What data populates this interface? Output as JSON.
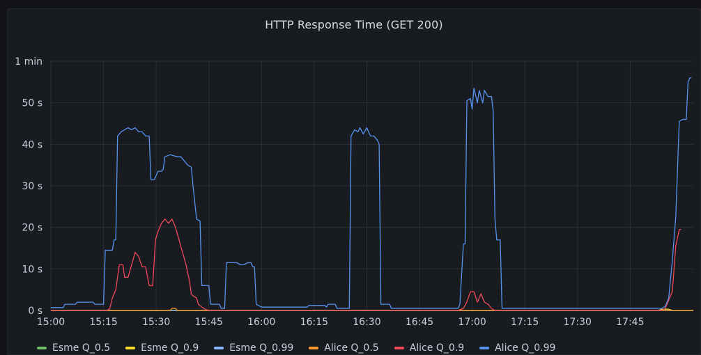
{
  "panel": {
    "title": "HTTP Response Time (GET 200)"
  },
  "chart_data": {
    "type": "line",
    "title": "HTTP Response Time (GET 200)",
    "xlabel": "",
    "ylabel": "",
    "x_unit": "minutes after 15:00",
    "xlim": [
      0,
      183
    ],
    "ylim": [
      0,
      60
    ],
    "grid": true,
    "legend_position": "bottom-left",
    "y_ticks": [
      {
        "value": 0,
        "label": "0 s"
      },
      {
        "value": 10,
        "label": "10 s"
      },
      {
        "value": 20,
        "label": "20 s"
      },
      {
        "value": 30,
        "label": "30 s"
      },
      {
        "value": 40,
        "label": "40 s"
      },
      {
        "value": 50,
        "label": "50 s"
      },
      {
        "value": 60,
        "label": "1 min"
      }
    ],
    "x_ticks": [
      {
        "value": 0,
        "label": "15:00"
      },
      {
        "value": 15,
        "label": "15:15"
      },
      {
        "value": 30,
        "label": "15:30"
      },
      {
        "value": 45,
        "label": "15:45"
      },
      {
        "value": 60,
        "label": "16:00"
      },
      {
        "value": 75,
        "label": "16:15"
      },
      {
        "value": 90,
        "label": "16:30"
      },
      {
        "value": 105,
        "label": "16:45"
      },
      {
        "value": 120,
        "label": "17:00"
      },
      {
        "value": 135,
        "label": "17:15"
      },
      {
        "value": 150,
        "label": "17:30"
      },
      {
        "value": 165,
        "label": "17:45"
      }
    ],
    "series": [
      {
        "name": "Esme Q_0.5",
        "color": "#73bf69",
        "points": [
          [
            0,
            0
          ],
          [
            183,
            0
          ]
        ]
      },
      {
        "name": "Esme Q_0.9",
        "color": "#fade2a",
        "points": [
          [
            0,
            0
          ],
          [
            173,
            0
          ],
          [
            174,
            0.3
          ],
          [
            176,
            0.3
          ],
          [
            177,
            0
          ],
          [
            183,
            0
          ]
        ]
      },
      {
        "name": "Esme Q_0.99",
        "color": "#8ab8ff",
        "points": [
          [
            0,
            0
          ],
          [
            183,
            0
          ]
        ]
      },
      {
        "name": "Alice Q_0.5",
        "color": "#ff9830",
        "points": [
          [
            0,
            0
          ],
          [
            34,
            0
          ],
          [
            34.5,
            0.5
          ],
          [
            35.5,
            0.5
          ],
          [
            36,
            0
          ],
          [
            183,
            0
          ]
        ]
      },
      {
        "name": "Alice Q_0.9",
        "color": "#f2495c",
        "points": [
          [
            0,
            0
          ],
          [
            16,
            0
          ],
          [
            16.8,
            0.5
          ],
          [
            17.5,
            3
          ],
          [
            18.5,
            5
          ],
          [
            19.5,
            11
          ],
          [
            20.5,
            11
          ],
          [
            21,
            8
          ],
          [
            22,
            8
          ],
          [
            23,
            11
          ],
          [
            24,
            14
          ],
          [
            25,
            13
          ],
          [
            26,
            10.5
          ],
          [
            27,
            10.5
          ],
          [
            28,
            6
          ],
          [
            29,
            6
          ],
          [
            29.8,
            17
          ],
          [
            30.5,
            19
          ],
          [
            31.5,
            21
          ],
          [
            32.5,
            22
          ],
          [
            33.5,
            21
          ],
          [
            34.5,
            22
          ],
          [
            35.5,
            20
          ],
          [
            36.5,
            17
          ],
          [
            37.5,
            14
          ],
          [
            38.5,
            11
          ],
          [
            39.5,
            7
          ],
          [
            40,
            4
          ],
          [
            40.5,
            3.5
          ],
          [
            41.5,
            3
          ],
          [
            42,
            1.5
          ],
          [
            43,
            0.8
          ],
          [
            44,
            0.3
          ],
          [
            45,
            0
          ],
          [
            116,
            0
          ],
          [
            117.5,
            0.5
          ],
          [
            118.5,
            2
          ],
          [
            119.5,
            4.5
          ],
          [
            120.5,
            4.5
          ],
          [
            121.5,
            2
          ],
          [
            122.5,
            4
          ],
          [
            123.5,
            2
          ],
          [
            124.5,
            1.5
          ],
          [
            125.5,
            0.5
          ],
          [
            126.5,
            0
          ],
          [
            174,
            0
          ],
          [
            175,
            0.5
          ],
          [
            176,
            2.5
          ],
          [
            177,
            4.5
          ],
          [
            178,
            15.5
          ],
          [
            179,
            19.5
          ],
          [
            179.5,
            19.5
          ]
        ]
      },
      {
        "name": "Alice Q_0.99",
        "color": "#5794f2",
        "points": [
          [
            0,
            0.7
          ],
          [
            3.5,
            0.7
          ],
          [
            4,
            1.5
          ],
          [
            7,
            1.5
          ],
          [
            7.5,
            2
          ],
          [
            12,
            2
          ],
          [
            12.5,
            1.5
          ],
          [
            15,
            1.5
          ],
          [
            15.5,
            14.5
          ],
          [
            17.5,
            14.5
          ],
          [
            18,
            17
          ],
          [
            18.5,
            17
          ],
          [
            19,
            42
          ],
          [
            20,
            43
          ],
          [
            22,
            44
          ],
          [
            23,
            43.5
          ],
          [
            24,
            44
          ],
          [
            25,
            43
          ],
          [
            26,
            43
          ],
          [
            27,
            42
          ],
          [
            28,
            42
          ],
          [
            28.5,
            31.5
          ],
          [
            29.5,
            31.5
          ],
          [
            30.5,
            33.5
          ],
          [
            31.5,
            33.5
          ],
          [
            32,
            34
          ],
          [
            32.5,
            37
          ],
          [
            34,
            37.5
          ],
          [
            36,
            37
          ],
          [
            37,
            37
          ],
          [
            38,
            36
          ],
          [
            39,
            35
          ],
          [
            40,
            34.5
          ],
          [
            40.5,
            30
          ],
          [
            41.5,
            22
          ],
          [
            42.5,
            21.5
          ],
          [
            43,
            6
          ],
          [
            45,
            6
          ],
          [
            45.5,
            1.5
          ],
          [
            48,
            1.5
          ],
          [
            48.5,
            0.5
          ],
          [
            49.5,
            0.5
          ],
          [
            50,
            11.5
          ],
          [
            53,
            11.5
          ],
          [
            54,
            11
          ],
          [
            55,
            11
          ],
          [
            56,
            11.5
          ],
          [
            57,
            11.5
          ],
          [
            57.5,
            10.5
          ],
          [
            58,
            10.5
          ],
          [
            58.5,
            1.5
          ],
          [
            60,
            0.8
          ],
          [
            73,
            0.8
          ],
          [
            73.5,
            1.2
          ],
          [
            78,
            1.2
          ],
          [
            78.5,
            0.8
          ],
          [
            79,
            1.5
          ],
          [
            81,
            1.5
          ],
          [
            81.5,
            0.5
          ],
          [
            85,
            0.5
          ],
          [
            85.5,
            42
          ],
          [
            86.5,
            43.5
          ],
          [
            87.5,
            43
          ],
          [
            88,
            44
          ],
          [
            89,
            42.5
          ],
          [
            90,
            44
          ],
          [
            91,
            42
          ],
          [
            92,
            42
          ],
          [
            93,
            41
          ],
          [
            93.5,
            40
          ],
          [
            94,
            1.5
          ],
          [
            96.5,
            1.5
          ],
          [
            97,
            0.5
          ],
          [
            116,
            0.5
          ],
          [
            116.5,
            1.5
          ],
          [
            117.5,
            16
          ],
          [
            118,
            16
          ],
          [
            118.5,
            50.5
          ],
          [
            119.5,
            51
          ],
          [
            120,
            48.5
          ],
          [
            120.5,
            53.5
          ],
          [
            121.5,
            50
          ],
          [
            122,
            53
          ],
          [
            123,
            50
          ],
          [
            123.5,
            53
          ],
          [
            124.5,
            51.5
          ],
          [
            125.5,
            51.5
          ],
          [
            126,
            48
          ],
          [
            126.5,
            22
          ],
          [
            127,
            17
          ],
          [
            128,
            17
          ],
          [
            128.5,
            0.5
          ],
          [
            174,
            0.5
          ],
          [
            175,
            1
          ],
          [
            176,
            3
          ],
          [
            177,
            12
          ],
          [
            178,
            22.5
          ],
          [
            179,
            45.5
          ],
          [
            180,
            46
          ],
          [
            181,
            46
          ],
          [
            181.5,
            55
          ],
          [
            182,
            56
          ],
          [
            182.5,
            56
          ]
        ]
      }
    ]
  }
}
